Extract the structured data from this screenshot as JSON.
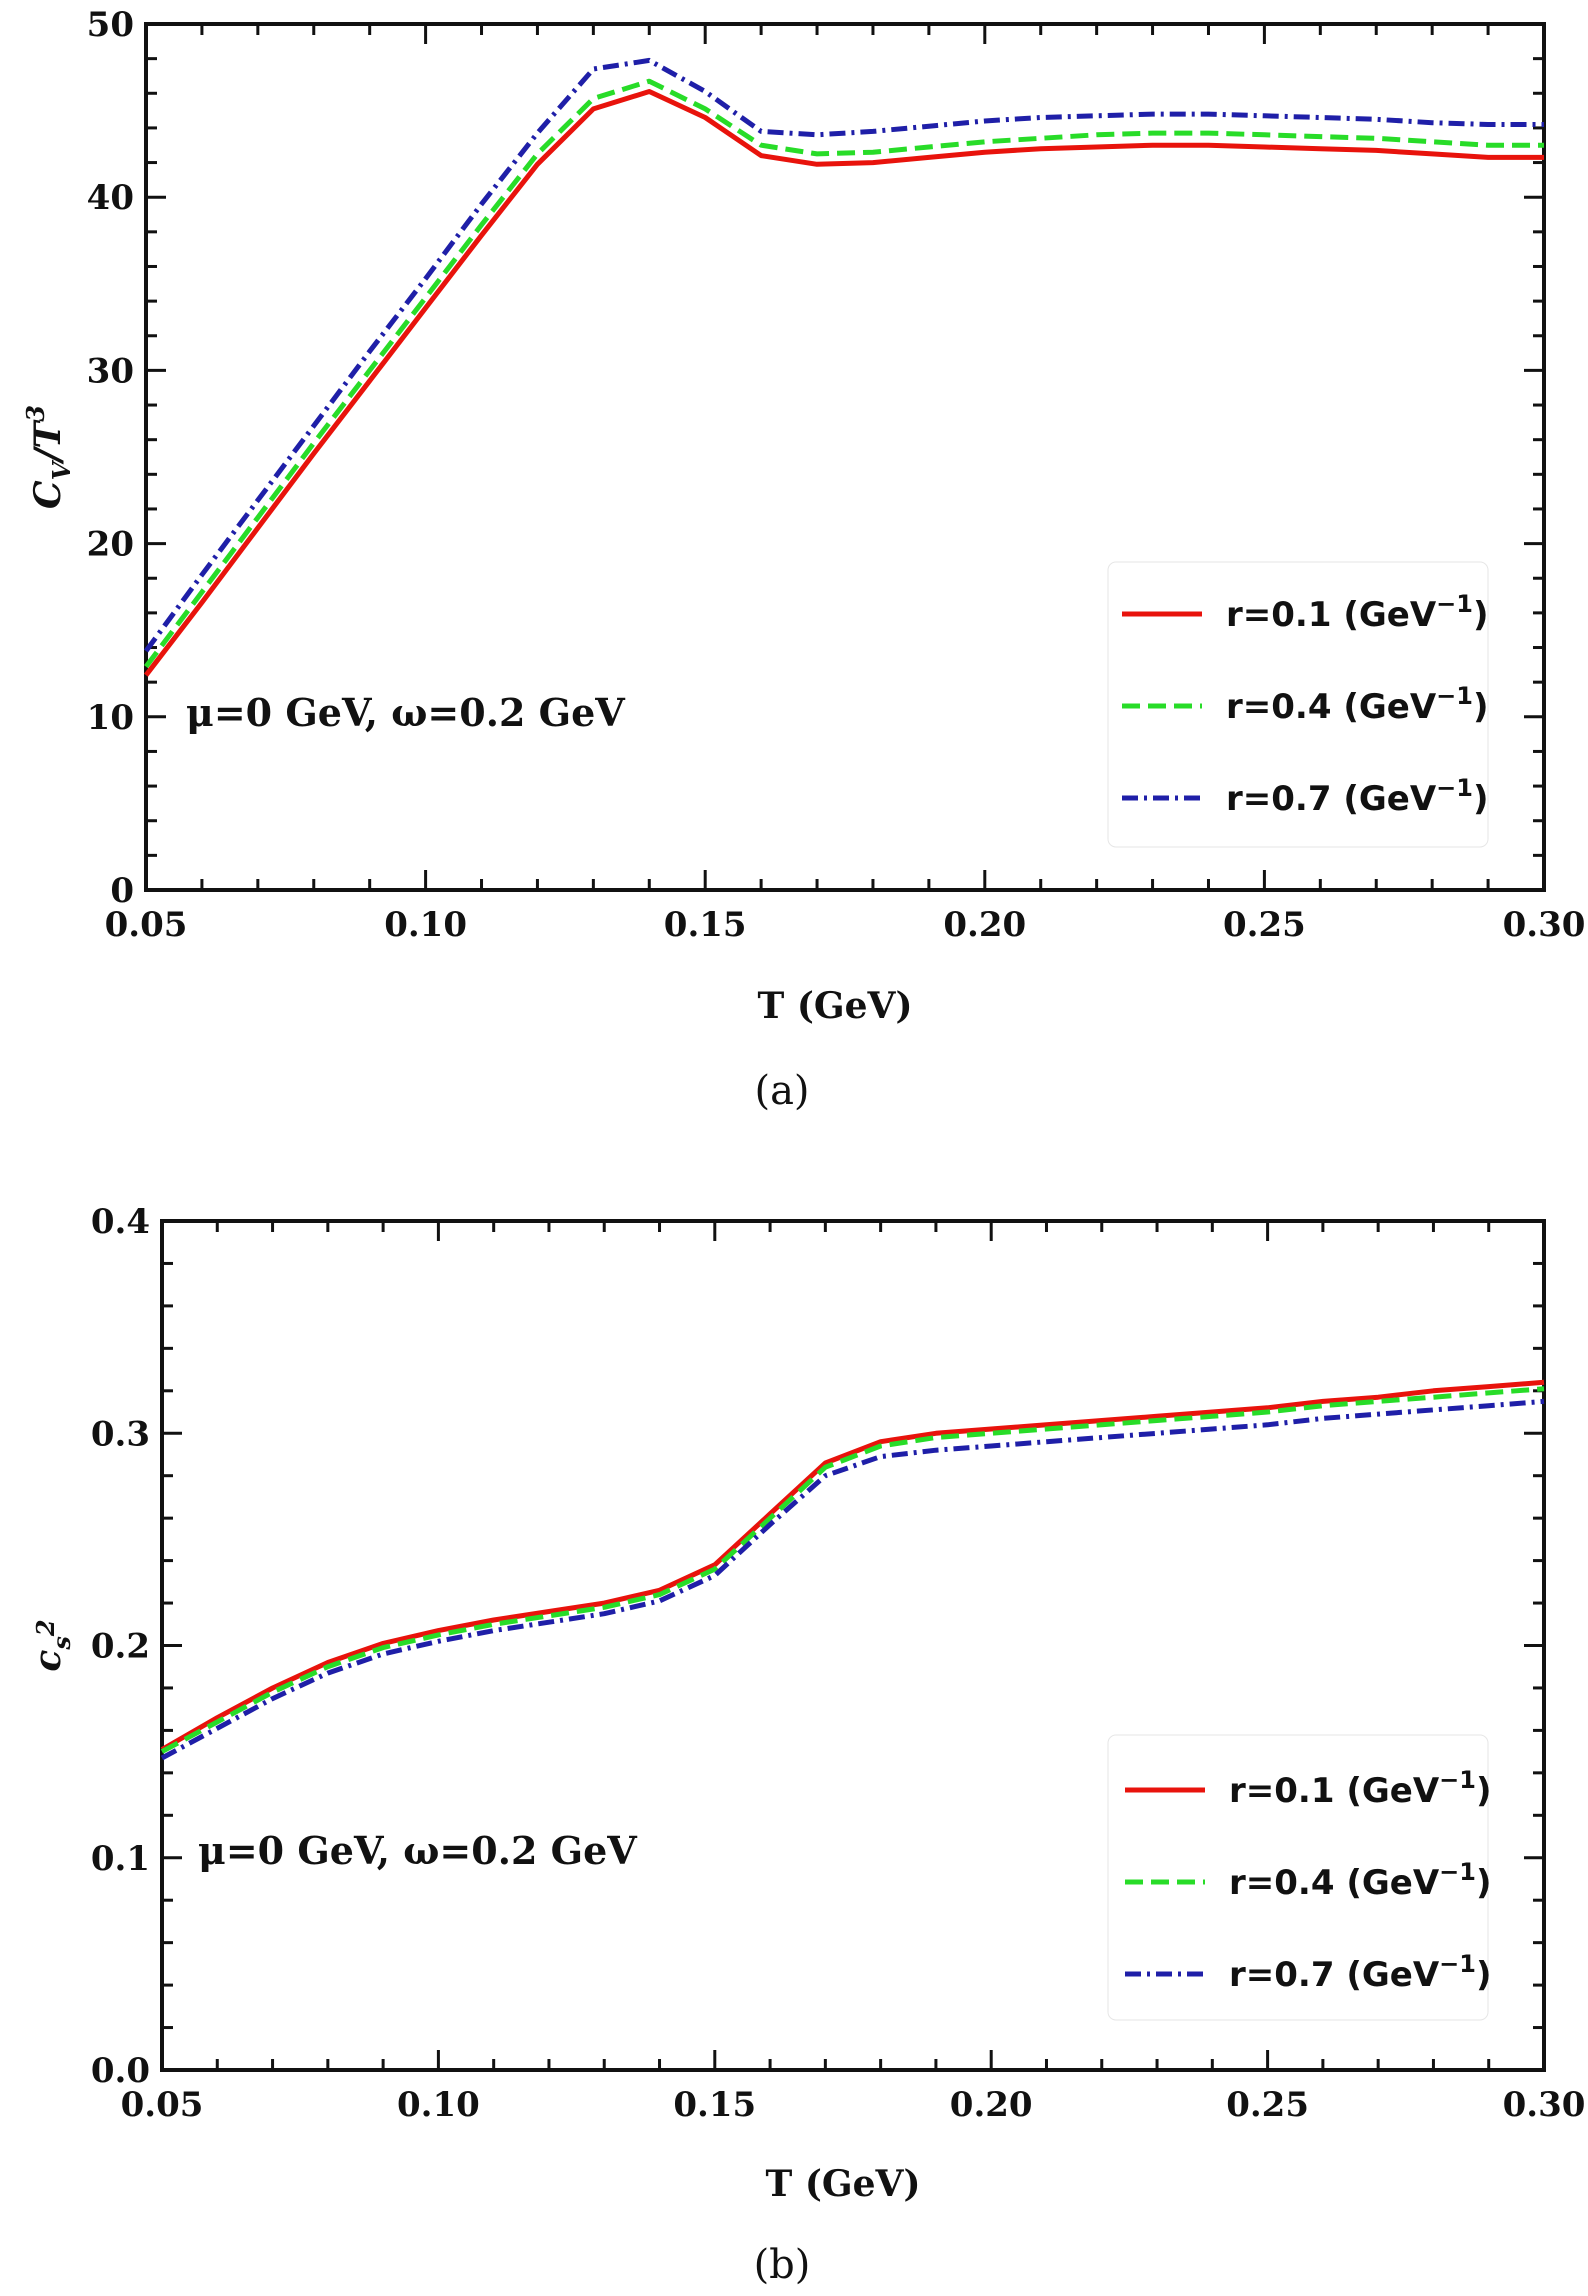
{
  "chart_data": [
    {
      "type": "line",
      "panel_label": "(a)",
      "xlabel": "T (GeV)",
      "ylabel": "C_V/T^3",
      "ylabel_main": "C",
      "ylabel_sub": "V",
      "ylabel_rest": "/T",
      "ylabel_sup": "3",
      "xlim": [
        0.05,
        0.3
      ],
      "ylim": [
        0,
        50
      ],
      "xticks": [
        0.05,
        0.1,
        0.15,
        0.2,
        0.25,
        0.3
      ],
      "xtick_labels": [
        "0.05",
        "0.10",
        "0.15",
        "0.20",
        "0.25",
        "0.30"
      ],
      "yticks": [
        0,
        10,
        20,
        30,
        40,
        50
      ],
      "ytick_labels": [
        "0",
        "10",
        "20",
        "30",
        "40",
        "50"
      ],
      "annotation": "μ=0 GeV, ω=0.2 GeV",
      "legend_position": "right",
      "grid": false,
      "x": [
        0.05,
        0.06,
        0.07,
        0.08,
        0.09,
        0.1,
        0.11,
        0.12,
        0.13,
        0.14,
        0.15,
        0.16,
        0.17,
        0.18,
        0.19,
        0.2,
        0.21,
        0.22,
        0.23,
        0.24,
        0.25,
        0.26,
        0.27,
        0.28,
        0.29,
        0.3
      ],
      "series": [
        {
          "name": "r=0.1 (GeV",
          "name_sup": "−1",
          "name_close": ")",
          "color": "#e8130c",
          "style": "solid",
          "values": [
            12.4,
            16.6,
            20.9,
            25.2,
            29.4,
            33.6,
            37.8,
            41.9,
            45.1,
            46.1,
            44.6,
            42.4,
            41.9,
            42.0,
            42.3,
            42.6,
            42.8,
            42.9,
            43.0,
            43.0,
            42.9,
            42.8,
            42.7,
            42.5,
            42.3,
            42.3
          ]
        },
        {
          "name": "r=0.4 (GeV",
          "name_sup": "−1",
          "name_close": ")",
          "color": "#28dc28",
          "style": "dashed",
          "values": [
            12.9,
            17.2,
            21.5,
            25.8,
            30.0,
            34.2,
            38.4,
            42.5,
            45.7,
            46.7,
            45.1,
            43.0,
            42.5,
            42.6,
            42.9,
            43.2,
            43.4,
            43.6,
            43.7,
            43.7,
            43.6,
            43.5,
            43.4,
            43.2,
            43.0,
            43.0
          ]
        },
        {
          "name": "r=0.7 (GeV",
          "name_sup": "−1",
          "name_close": ")",
          "color": "#1f1fa8",
          "style": "dashdot",
          "values": [
            13.8,
            18.2,
            22.5,
            26.8,
            31.1,
            35.3,
            39.6,
            43.7,
            47.4,
            47.9,
            46.1,
            43.8,
            43.6,
            43.8,
            44.1,
            44.4,
            44.6,
            44.7,
            44.8,
            44.8,
            44.7,
            44.6,
            44.5,
            44.3,
            44.2,
            44.2
          ]
        }
      ]
    },
    {
      "type": "line",
      "panel_label": "(b)",
      "xlabel": "T (GeV)",
      "ylabel": "c_s^2",
      "ylabel_main": "c",
      "ylabel_sub": "s",
      "ylabel_rest": "",
      "ylabel_sup": "2",
      "xlim": [
        0.05,
        0.3
      ],
      "ylim": [
        0,
        0.4
      ],
      "xticks": [
        0.05,
        0.1,
        0.15,
        0.2,
        0.25,
        0.3
      ],
      "xtick_labels": [
        "0.05",
        "0.10",
        "0.15",
        "0.20",
        "0.25",
        "0.30"
      ],
      "yticks": [
        0,
        0.1,
        0.2,
        0.3,
        0.4
      ],
      "ytick_labels": [
        "0.0",
        "0.1",
        "0.2",
        "0.3",
        "0.4"
      ],
      "annotation": "μ=0 GeV, ω=0.2 GeV",
      "legend_position": "right",
      "grid": false,
      "x": [
        0.05,
        0.06,
        0.07,
        0.08,
        0.09,
        0.1,
        0.11,
        0.12,
        0.13,
        0.14,
        0.15,
        0.16,
        0.17,
        0.18,
        0.19,
        0.2,
        0.21,
        0.22,
        0.23,
        0.24,
        0.25,
        0.26,
        0.27,
        0.28,
        0.29,
        0.3
      ],
      "series": [
        {
          "name": "r=0.1 (GeV",
          "name_sup": "−1",
          "name_close": ")",
          "color": "#e8130c",
          "style": "solid",
          "values": [
            0.151,
            0.166,
            0.18,
            0.192,
            0.201,
            0.207,
            0.212,
            0.216,
            0.22,
            0.226,
            0.238,
            0.262,
            0.286,
            0.296,
            0.3,
            0.302,
            0.304,
            0.306,
            0.308,
            0.31,
            0.312,
            0.315,
            0.317,
            0.32,
            0.322,
            0.324
          ]
        },
        {
          "name": "r=0.4 (GeV",
          "name_sup": "−1",
          "name_close": ")",
          "color": "#28dc28",
          "style": "dashed",
          "values": [
            0.15,
            0.164,
            0.178,
            0.19,
            0.199,
            0.205,
            0.21,
            0.214,
            0.218,
            0.224,
            0.236,
            0.26,
            0.284,
            0.294,
            0.298,
            0.3,
            0.302,
            0.304,
            0.306,
            0.308,
            0.31,
            0.313,
            0.315,
            0.317,
            0.319,
            0.321
          ]
        },
        {
          "name": "r=0.7 (GeV",
          "name_sup": "−1",
          "name_close": ")",
          "color": "#1f1fa8",
          "style": "dashdot",
          "values": [
            0.147,
            0.161,
            0.175,
            0.187,
            0.196,
            0.202,
            0.207,
            0.211,
            0.215,
            0.221,
            0.233,
            0.257,
            0.28,
            0.289,
            0.292,
            0.294,
            0.296,
            0.298,
            0.3,
            0.302,
            0.304,
            0.307,
            0.309,
            0.311,
            0.313,
            0.315
          ]
        }
      ]
    }
  ]
}
